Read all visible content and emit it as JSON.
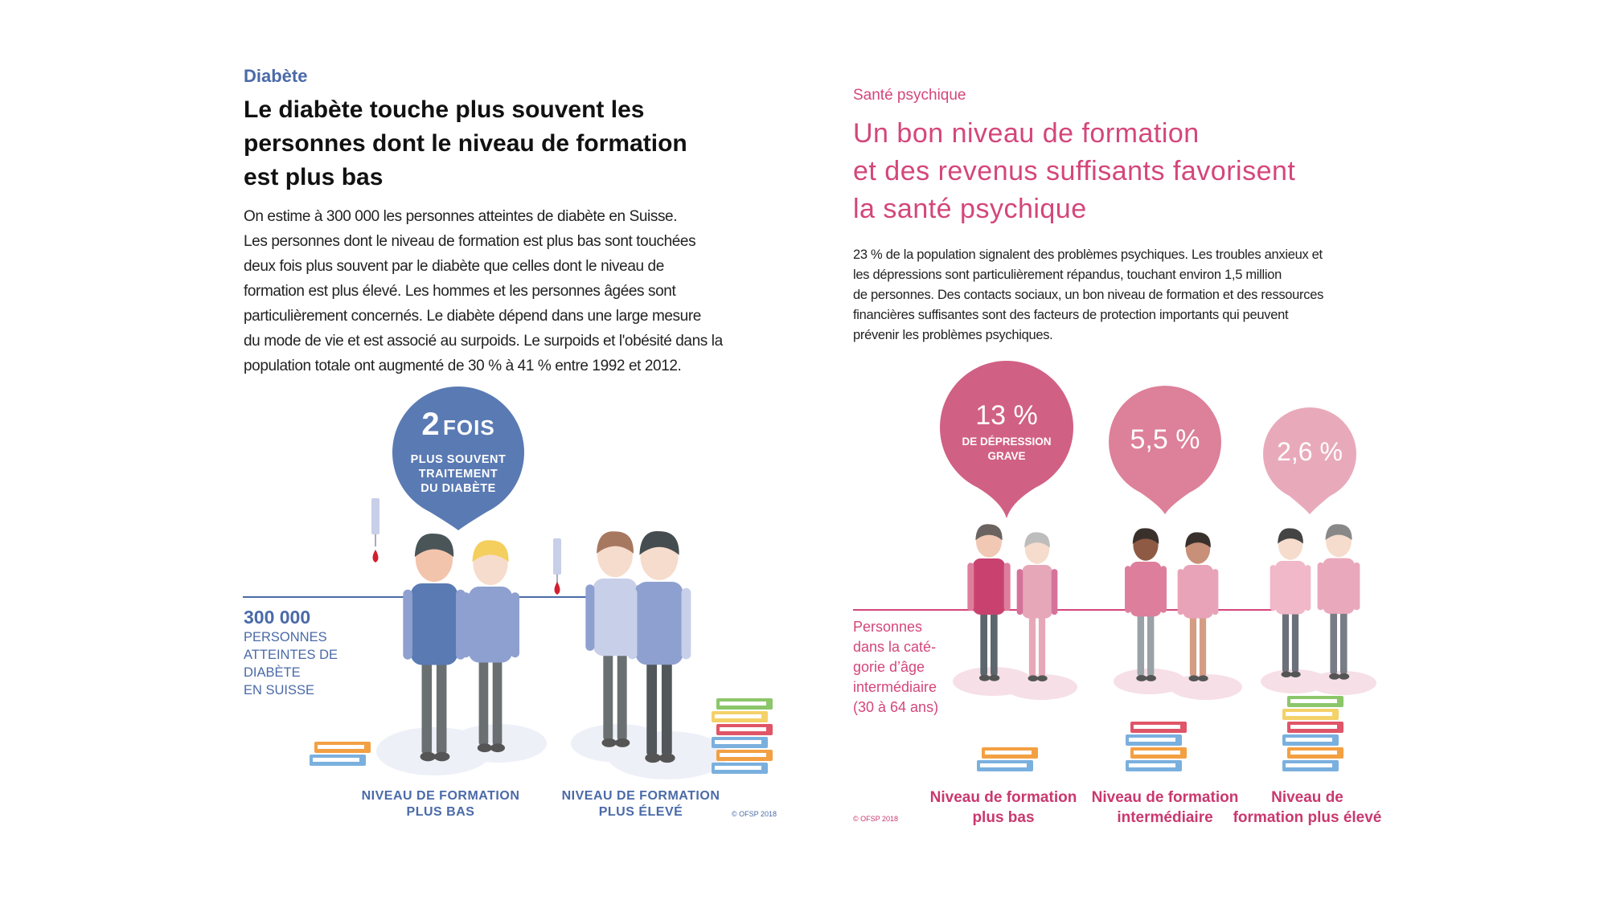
{
  "left": {
    "kicker": "Diabète",
    "title_lines": [
      "Le diabète touche plus souvent les",
      "personnes dont le niveau de formation",
      "est plus bas"
    ],
    "body_lines": [
      "On estime à 300 000 les personnes atteintes de diabète en Suisse.",
      "Les personnes dont le niveau de formation est plus bas sont touchées",
      "deux fois plus souvent par le diabète que celles dont le niveau de",
      "formation est plus élevé. Les hommes et les personnes âgées sont",
      "particulièrement concernés. Le diabète dépend dans une large mesure",
      "du mode de vie et est associé au surpoids. Le surpoids et l'obésité dans la",
      "population totale ont augmenté de 30 % à 41 % entre 1992 et 2012."
    ],
    "bubble": {
      "number": "2",
      "unit": "FOIS",
      "lines": [
        "PLUS SOUVENT",
        "TRAITEMENT",
        "DU DIABÈTE"
      ],
      "color": "#5a7ab3"
    },
    "stat": {
      "value": "300 000",
      "lines": [
        "Personnes",
        "atteintes de",
        "diabète",
        "en Suisse"
      ]
    },
    "labels": [
      {
        "line1": "NIVEAU DE FORMATION",
        "line2": "PLUS BAS"
      },
      {
        "line1": "NIVEAU DE FORMATION",
        "line2": "PLUS ÉLEVÉ"
      }
    ],
    "copyright": "© OFSP 2018",
    "accent": "#4a6aa8"
  },
  "right": {
    "kicker": "Santé psychique",
    "title_lines": [
      "Un bon niveau de formation",
      "et des revenus suffisants favorisent",
      "la santé psychique"
    ],
    "body_lines": [
      "23 % de la population signalent des problèmes psychiques. Les troubles anxieux et",
      "les dépressions sont particulièrement répandus, touchant environ 1,5 million",
      "de personnes. Des contacts sociaux, un bon niveau de formation et des ressources",
      "financières suffisantes sont des facteurs de protection importants qui peuvent",
      "prévenir les problèmes psychiques."
    ],
    "bubbles": [
      {
        "value": "13 %",
        "caption_lines": [
          "DE DÉPRESSION",
          "GRAVE"
        ],
        "percent": 13,
        "color": "#d16085"
      },
      {
        "value": "5,5 %",
        "percent": 5.5,
        "color": "#dd8099"
      },
      {
        "value": "2,6 %",
        "percent": 2.6,
        "color": "#e8aabb"
      }
    ],
    "persons_lines": [
      "Personnes",
      "dans la caté-",
      "gorie d’âge",
      "intermédiaire",
      "(30 à 64 ans)"
    ],
    "labels": [
      {
        "line1": "Niveau de formation",
        "line2": "plus bas"
      },
      {
        "line1": "Niveau de formation",
        "line2": "intermédiaire"
      },
      {
        "line1": "Niveau de",
        "line2": "formation plus élevé"
      }
    ],
    "copyright": "© OFSP 2018",
    "accent": "#d4467a"
  }
}
